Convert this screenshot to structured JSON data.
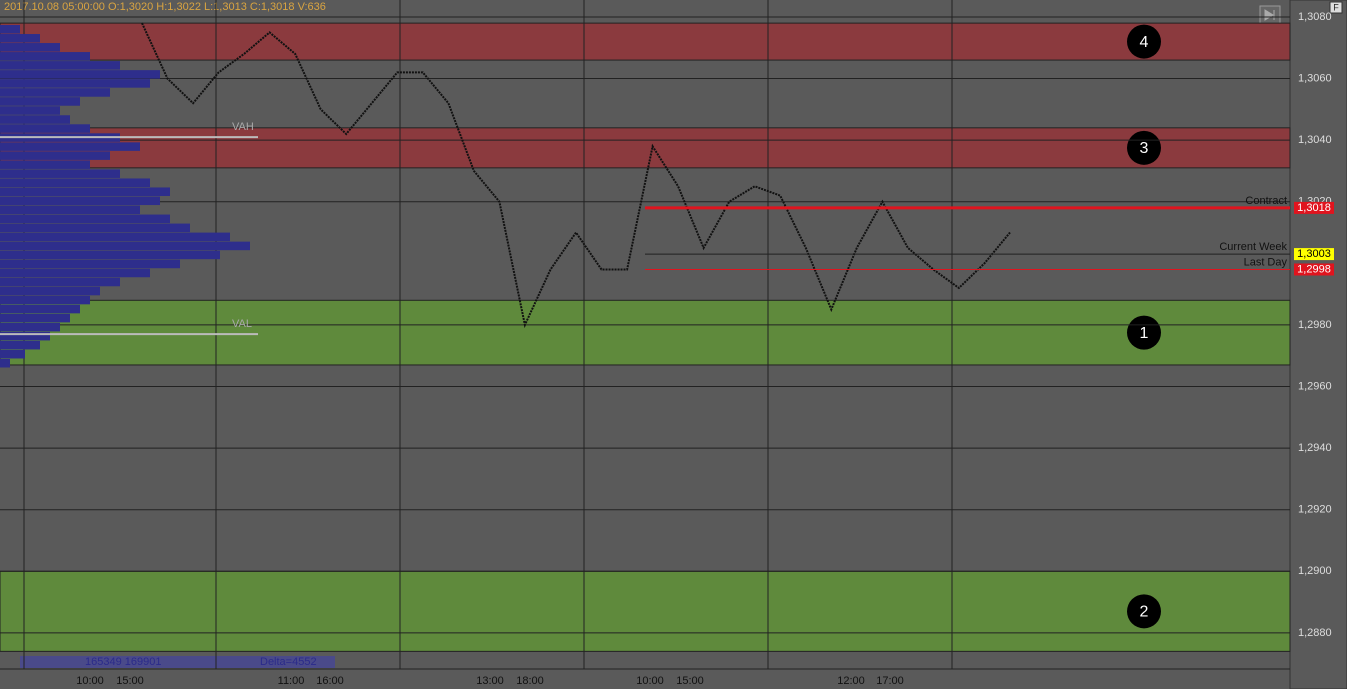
{
  "header": {
    "info": "2017.10.08 05:00:00   O:1,3020   H:1,3022   L:1,3013   C:1,3018   V:636",
    "corner": "F"
  },
  "price_axis": {
    "range": [
      1.3082,
      1.2866
    ],
    "ticks": [
      {
        "value": 1.308,
        "label": "1,3080"
      },
      {
        "value": 1.306,
        "label": "1,3060"
      },
      {
        "value": 1.304,
        "label": "1,3040"
      },
      {
        "value": 1.302,
        "label": "1,3020"
      },
      {
        "value": 1.298,
        "label": "1,2980"
      },
      {
        "value": 1.296,
        "label": "1,2960"
      },
      {
        "value": 1.294,
        "label": "1,2940"
      },
      {
        "value": 1.292,
        "label": "1,2920"
      },
      {
        "value": 1.29,
        "label": "1,2900"
      },
      {
        "value": 1.288,
        "label": "1,2880"
      }
    ]
  },
  "zones": [
    {
      "label": "4",
      "top": 1.3078,
      "bottom": 1.3066,
      "color": "#8b3a3e"
    },
    {
      "label": "3",
      "top": 1.3044,
      "bottom": 1.3031,
      "color": "#8b3a3e"
    },
    {
      "label": "1",
      "top": 1.2988,
      "bottom": 1.2967,
      "color": "#5f8a3c"
    },
    {
      "label": "2",
      "top": 1.29,
      "bottom": 1.2874,
      "color": "#5f8a3c"
    }
  ],
  "levels": [
    {
      "name": "Contract",
      "price": 1.3018,
      "label": "1,3018",
      "color": "#e0141e"
    },
    {
      "name": "Current Week",
      "price": 1.3003,
      "label": "1,3003",
      "color": "#ffff00"
    },
    {
      "name": "Last Day",
      "price": 1.2998,
      "label": "1,2998",
      "color": "#e0141e"
    }
  ],
  "value_area": [
    {
      "name": "VAH",
      "price": 1.3041
    },
    {
      "name": "VAL",
      "price": 1.2977
    }
  ],
  "volume_profile": [
    20,
    40,
    60,
    90,
    120,
    160,
    150,
    110,
    80,
    60,
    70,
    90,
    120,
    140,
    110,
    90,
    120,
    150,
    170,
    160,
    140,
    170,
    190,
    230,
    250,
    220,
    180,
    150,
    120,
    100,
    90,
    80,
    70,
    60,
    50,
    40,
    25,
    10
  ],
  "price_path": [
    1.3078,
    1.306,
    1.3052,
    1.3062,
    1.3068,
    1.3075,
    1.3068,
    1.305,
    1.3042,
    1.3052,
    1.3062,
    1.3062,
    1.3052,
    1.303,
    1.302,
    1.298,
    1.2998,
    1.301,
    1.2998,
    1.2998,
    1.3038,
    1.3025,
    1.3005,
    1.302,
    1.3025,
    1.3022,
    1.3005,
    1.2985,
    1.3005,
    1.302,
    1.3005,
    1.2998,
    1.2992,
    1.3,
    1.301
  ],
  "footer": {
    "volumes": "165349 169901",
    "delta": "Delta=4552",
    "times": [
      "10:00",
      "15:00",
      "11:00",
      "16:00",
      "13:00",
      "18:00",
      "10:00",
      "15:00",
      "12:00",
      "17:00"
    ]
  }
}
